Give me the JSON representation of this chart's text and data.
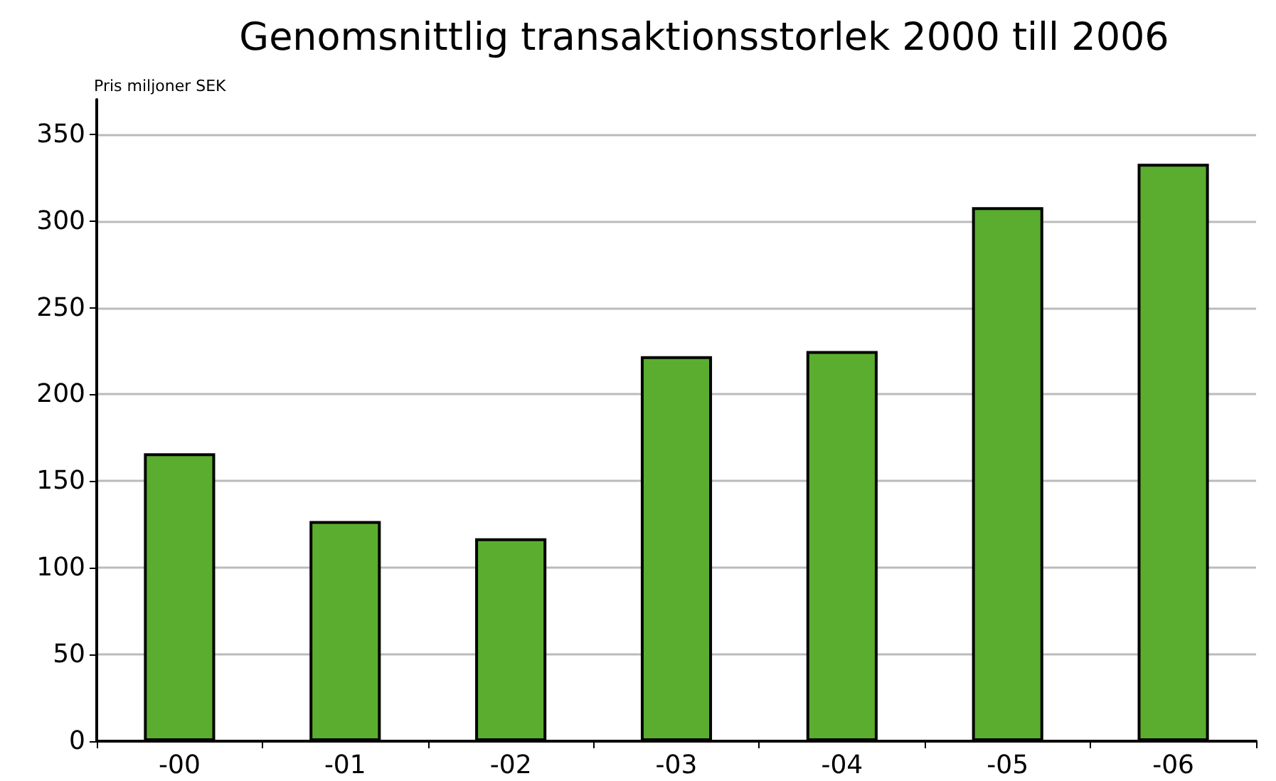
{
  "chart_data": {
    "type": "bar",
    "title": "Genomsnittlig transaktionsstorlek 2000 till 2006",
    "ylabel": "Pris miljoner SEK",
    "categories": [
      "-00",
      "-01",
      "-02",
      "-03",
      "-04",
      "-05",
      "-06"
    ],
    "values": [
      166,
      127,
      117,
      222,
      225,
      308,
      333
    ],
    "color": "#5aad2e",
    "ylim": [
      0,
      370
    ],
    "yticks": [
      0,
      50,
      100,
      150,
      200,
      250,
      300,
      350
    ],
    "grid": "y"
  }
}
